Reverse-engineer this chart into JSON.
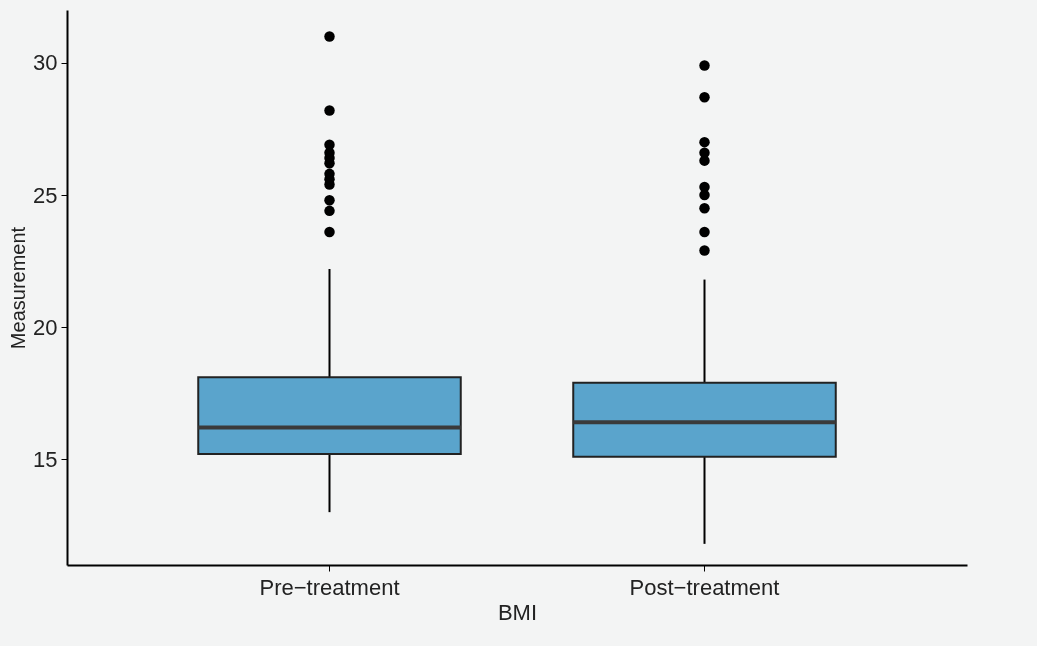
{
  "chart_data": {
    "type": "box",
    "xlabel": "BMI",
    "ylabel": "Measurement",
    "categories": [
      "Pre−treatment",
      "Post−treatment"
    ],
    "ylim": [
      11,
      32
    ],
    "yticks": [
      15,
      20,
      25,
      30
    ],
    "series": [
      {
        "color": "#5aa4cc",
        "boxes": [
          {
            "low": 13.0,
            "q1": 15.2,
            "median": 16.2,
            "q3": 18.1,
            "high": 22.2,
            "outliers": [
              31.0,
              28.2,
              26.9,
              26.6,
              26.4,
              26.2,
              25.8,
              25.6,
              25.4,
              24.8,
              24.4,
              23.6
            ]
          },
          {
            "low": 11.8,
            "q1": 15.1,
            "median": 16.4,
            "q3": 17.9,
            "high": 21.8,
            "outliers": [
              29.9,
              28.7,
              27.0,
              26.6,
              26.3,
              25.3,
              25.0,
              24.5,
              23.6,
              22.9
            ]
          }
        ]
      }
    ]
  }
}
